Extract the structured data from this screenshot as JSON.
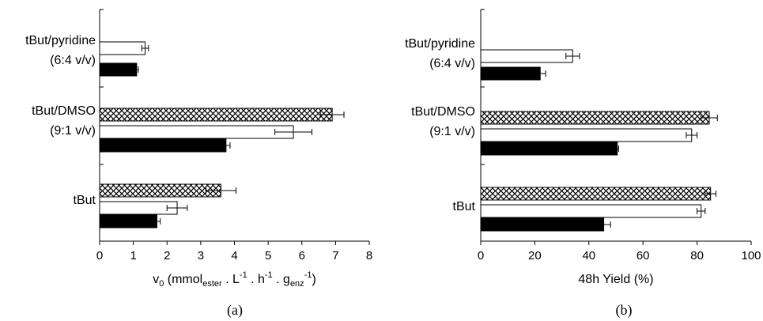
{
  "chart_data": [
    {
      "type": "bar",
      "orientation": "horizontal",
      "panel_label": "(a)",
      "categories": [
        {
          "lines": [
            "tBut/pyridine",
            "(6:4 v/v)"
          ]
        },
        {
          "lines": [
            "tBut/DMSO",
            "(9:1 v/v)"
          ]
        },
        {
          "lines": [
            "tBut"
          ]
        }
      ],
      "xlabel": {
        "pre": "v",
        "sub1": "0",
        "mid1": " (mmol",
        "sub2": "ester",
        "mid2": " . L",
        "sup1": "-1",
        "mid3": " . h",
        "sup2": "-1",
        "mid4": " . g",
        "sub3": "enz",
        "sup3": "-1",
        "post": ")"
      },
      "xlim": [
        0,
        8
      ],
      "xticks": [
        "0",
        "1",
        "2",
        "3",
        "4",
        "5",
        "6",
        "7",
        "8"
      ],
      "grid": false,
      "series": [
        {
          "pattern": "crosshatch",
          "values": [
            null,
            6.9,
            3.6
          ],
          "errors": [
            null,
            0.35,
            0.45
          ]
        },
        {
          "pattern": "white",
          "values": [
            1.35,
            5.75,
            2.3
          ],
          "errors": [
            0.1,
            0.55,
            0.3
          ]
        },
        {
          "pattern": "black",
          "values": [
            1.1,
            3.75,
            1.7
          ],
          "errors": [
            0.05,
            0.12,
            0.1
          ]
        }
      ]
    },
    {
      "type": "bar",
      "orientation": "horizontal",
      "panel_label": "(b)",
      "categories": [
        {
          "lines": [
            "tBut/pyridine",
            "(6:4 v/v)"
          ]
        },
        {
          "lines": [
            "tBut/DMSO",
            "(9:1 v/v)"
          ]
        },
        {
          "lines": [
            "tBut"
          ]
        }
      ],
      "xlabel": {
        "pre": "48h Yield (%)"
      },
      "xlim": [
        0,
        100
      ],
      "xticks": [
        "0",
        "20",
        "40",
        "60",
        "80",
        "100"
      ],
      "grid": false,
      "series": [
        {
          "pattern": "crosshatch",
          "values": [
            null,
            84.5,
            85
          ],
          "errors": [
            null,
            3,
            2
          ]
        },
        {
          "pattern": "white",
          "values": [
            34,
            78,
            81.5
          ],
          "errors": [
            2.5,
            2,
            1.5
          ]
        },
        {
          "pattern": "black",
          "values": [
            22,
            50.5,
            45.5
          ],
          "errors": [
            2,
            0.5,
            2.5
          ]
        }
      ]
    }
  ]
}
